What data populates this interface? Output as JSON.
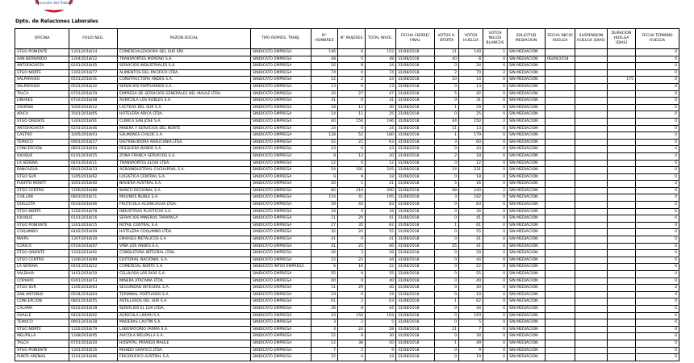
{
  "header": {
    "logo_text": "Dirección del Trabajo",
    "department": "Dpto. de Relaciones Laborales"
  },
  "table": {
    "columns": [
      "OFICINA",
      "FOLIO NEG.",
      "RAZON SOCIAL",
      "TIPO REPRES. TRABJ.",
      "N° HOMBRES",
      "N° MUJERES",
      "TOTAL INVOL.",
      "FECHA CIERRE/ FINAL",
      "VOTOS U. OFERTA",
      "VOTOS HUELGA",
      "VOTOS NULOS BLANCOS",
      "SOLICITUD MEDIACION",
      "FECHA INICIO HUELGA",
      "SUSPENSION HUELGA (DIAS)",
      "DURACION HUELGA (DIAS)",
      "FECHA TERMINO HUELGA"
    ],
    "rows": [
      [
        "STGO PONIENTE",
        "1301/2018/14",
        "COMERCIALIZADORA DEL SUR SPA",
        "SINDICATO EMPRESA",
        146,
        6,
        152,
        "31/08/2018",
        11,
        140,
        1,
        "SIN MEDIACION",
        null,
        null,
        null,
        0
      ],
      [
        "SAN BERNARDO",
        "1304/2018/22",
        "TRANSPORTES MORENO S.A.",
        "SINDICATO EMPRESA",
        48,
        0,
        48,
        "31/08/2018",
        40,
        8,
        0,
        "SIN MEDIACION",
        "06/09/2018",
        null,
        null,
        0
      ],
      [
        "ANTOFAGASTA",
        "0201/2018/45",
        "SERVICIOS INDUSTRIALES S.A.",
        "SINDICATO EMPRESA",
        16,
        8,
        24,
        "31/08/2018",
        0,
        24,
        0,
        "SIN MEDIACION",
        null,
        null,
        null,
        0
      ],
      [
        "STGO NORTE",
        "1302/2018/77",
        "ALIMENTOS DEL PACIFICO LTDA.",
        "SINDICATO EMPRESA",
        74,
        0,
        74,
        "31/08/2018",
        2,
        70,
        2,
        "SIN MEDIACION",
        null,
        null,
        null,
        0
      ],
      [
        "VALPARAISO",
        "0501/2018/31",
        "CONSTRUCTORA ANDES S.A.",
        "SINDICATO EMPRESA",
        22,
        2,
        24,
        "31/08/2018",
        10,
        14,
        0,
        "SIN MEDIACION",
        null,
        null,
        175,
        0
      ],
      [
        "VALPARAISO",
        "0501/2018/32",
        "SERVICIOS PORTUARIOS S.A.",
        "SINDICATO EMPRESA",
        13,
        0,
        13,
        "31/08/2018",
        0,
        13,
        0,
        "SIN MEDIACION",
        null,
        null,
        null,
        0
      ],
      [
        "TALCA",
        "0701/2018/19",
        "EMPRESA DE SERVICIOS GENERALES DEL MAULE LTDA.",
        "SINDICATO EMPRESA",
        20,
        27,
        47,
        "31/08/2018",
        5,
        42,
        0,
        "SIN MEDIACION",
        null,
        null,
        null,
        0
      ],
      [
        "LINARES",
        "0702/2018/08",
        "AGRICOLA LOS ROBLES S.A.",
        "SINDICATO EMPRESA",
        31,
        0,
        31,
        "31/08/2018",
        0,
        31,
        0,
        "SIN MEDIACION",
        null,
        null,
        null,
        0
      ],
      [
        "OSORNO",
        "1002/2018/12",
        "LACTEOS DEL SUR S.A.",
        "SINDICATO EMPRESA",
        18,
        12,
        30,
        "31/08/2018",
        1,
        29,
        0,
        "SIN MEDIACION",
        null,
        null,
        null,
        0
      ],
      [
        "ARICA",
        "1501/2018/05",
        "HOTELERA ARICA LTDA.",
        "SINDICATO EMPRESA",
        14,
        11,
        25,
        "31/08/2018",
        0,
        25,
        0,
        "SIN MEDIACION",
        null,
        null,
        null,
        0
      ],
      [
        "STGO ORIENTE",
        "1303/2018/91",
        "CLINICA SAN JOSE S.A.",
        "SINDICATO EMPRESA",
        40,
        156,
        196,
        "31/08/2018",
        44,
        150,
        2,
        "SIN MEDIACION",
        null,
        null,
        null,
        0
      ],
      [
        "ANTOFAGASTA",
        "0201/2018/46",
        "MINERA Y SERVICIOS DEL NORTE",
        "SINDICATO EMPRESA",
        24,
        0,
        24,
        "31/08/2018",
        11,
        13,
        0,
        "SIN MEDIACION",
        null,
        null,
        null,
        0
      ],
      [
        "CASTRO",
        "1005/2018/03",
        "SALMONES CHILOE S.A.",
        "SINDICATO EMPRESA",
        128,
        52,
        180,
        "31/08/2018",
        1,
        179,
        0,
        "SIN MEDIACION",
        null,
        null,
        null,
        0
      ],
      [
        "TEMUCO",
        "0901/2018/27",
        "DISTRIBUIDORA ARAUCANIA LTDA.",
        "SINDICATO EMPRESA",
        42,
        21,
        63,
        "31/08/2018",
        3,
        60,
        0,
        "SIN MEDIACION",
        null,
        null,
        null,
        0
      ],
      [
        "CONCEPCION",
        "0801/2018/54",
        "PESQUERA BIOBIO S.A.",
        "SINDICATO EMPRESA",
        43,
        0,
        43,
        "31/08/2018",
        0,
        43,
        0,
        "SIN MEDIACION",
        null,
        null,
        null,
        0
      ],
      [
        "IQUIQUE",
        "0101/2018/15",
        "ZONA FRANCA SERVICIOS S.A.",
        "SINDICATO EMPRESA",
        8,
        12,
        20,
        "31/08/2018",
        2,
        18,
        0,
        "SIN MEDIACION",
        null,
        null,
        null,
        0
      ],
      [
        "LA SERENA",
        "0401/2018/21",
        "TRANSPORTES ELQUI LTDA.",
        "SINDICATO EMPRESA",
        12,
        0,
        12,
        "31/08/2018",
        0,
        12,
        0,
        "SIN MEDIACION",
        null,
        null,
        null,
        0
      ],
      [
        "RANCAGUA",
        "0601/2018/33",
        "AGROINDUSTRIAL CACHAPOAL S.A.",
        "SINDICATO EMPRESA",
        54,
        191,
        245,
        "31/08/2018",
        14,
        231,
        0,
        "SIN MEDIACION",
        null,
        null,
        null,
        0
      ],
      [
        "STGO SUR",
        "1305/2018/62",
        "LOGISTICA CENTRAL S.A.",
        "SINDICATO EMPRESA",
        9,
        9,
        18,
        "31/08/2018",
        0,
        18,
        0,
        "SIN MEDIACION",
        null,
        null,
        null,
        0
      ],
      [
        "PUERTO MONTT",
        "1001/2018/40",
        "NAVIERA AUSTRAL S.A.",
        "SINDICATO EMPRESA",
        20,
        1,
        21,
        "31/08/2018",
        5,
        16,
        0,
        "SIN MEDIACION",
        null,
        null,
        null,
        0
      ],
      [
        "STGO CENTRO",
        "1306/2018/88",
        "BANCO REGIONAL S.A.",
        "SINDICATO EMPRESA",
        80,
        210,
        290,
        "31/08/2018",
        48,
        240,
        2,
        "SIN MEDIACION",
        null,
        null,
        null,
        0
      ],
      [
        "CHILLAN",
        "0803/2018/11",
        "MOLINOS ÑUBLE S.A.",
        "SINDICATO EMPRESA",
        154,
        41,
        195,
        "31/08/2018",
        3,
        192,
        0,
        "SIN MEDIACION",
        null,
        null,
        null,
        0
      ],
      [
        "QUILLOTA",
        "0503/2018/06",
        "FRUTICOLA ACONCAGUA LTDA.",
        "SINDICATO EMPRESA",
        39,
        44,
        83,
        "31/08/2018",
        0,
        83,
        0,
        "SIN MEDIACION",
        null,
        null,
        null,
        0
      ],
      [
        "STGO NORTE",
        "1302/2018/78",
        "INDUSTRIAS PLASTICAS S.A.",
        "SINDICATO EMPRESA",
        34,
        0,
        34,
        "31/08/2018",
        0,
        34,
        0,
        "SIN MEDIACION",
        null,
        null,
        null,
        0
      ],
      [
        "IQUIQUE",
        "0101/2018/16",
        "SERVICIOS MINEROS TARAPACA",
        "SINDICATO EMPRESA",
        21,
        20,
        41,
        "31/08/2018",
        0,
        41,
        0,
        "SIN MEDIACION",
        null,
        null,
        null,
        0
      ],
      [
        "STGO PONIENTE",
        "1301/2018/15",
        "RETAIL CENTRAL S.A.",
        "SINDICATO EMPRESA",
        27,
        35,
        62,
        "31/08/2018",
        1,
        61,
        0,
        "SIN MEDIACION",
        null,
        null,
        null,
        0
      ],
      [
        "COQUIMBO",
        "0402/2018/09",
        "HOTELERA COQUIMBO LTDA.",
        "SINDICATO EMPRESA",
        35,
        20,
        55,
        "31/08/2018",
        0,
        55,
        0,
        "SIN MEDIACION",
        null,
        null,
        null,
        0
      ],
      [
        "MAIPU",
        "1307/2018/20",
        "ENVASES METALICOS S.A.",
        "SINDICATO EMPRESA",
        41,
        0,
        41,
        "31/08/2018",
        0,
        41,
        0,
        "SIN MEDIACION",
        null,
        null,
        null,
        0
      ],
      [
        "CURICO",
        "0703/2018/07",
        "VIÑA LOS ANDES S.A.",
        "SINDICATO EMPRESA",
        41,
        25,
        66,
        "31/08/2018",
        25,
        41,
        0,
        "SIN MEDIACION",
        null,
        null,
        null,
        0
      ],
      [
        "STGO ORIENTE",
        "1303/2018/92",
        "CONSULTORA INTEGRAL LTDA.",
        "SINDICATO EMPRESA",
        26,
        3,
        29,
        "31/08/2018",
        0,
        29,
        0,
        "SIN MEDIACION",
        null,
        null,
        null,
        0
      ],
      [
        "STGO CENTRO",
        "1306/2018/89",
        "EDITORIAL NACIONAL S.A.",
        "SINDICATO EMPRESA",
        22,
        22,
        44,
        "31/08/2018",
        0,
        44,
        0,
        "SIN MEDIACION",
        null,
        null,
        null,
        0
      ],
      [
        "LA SERENA",
        "0401/2018/22",
        "COMERCIAL NORTE S.A.",
        "SINDICATO INTER EMPRESA",
        6,
        16,
        22,
        "31/08/2018",
        0,
        22,
        0,
        "SIN MEDIACION",
        null,
        null,
        null,
        0
      ],
      [
        "VALDIVIA",
        "1401/2018/10",
        "CELULOSA LOS RIOS S.A.",
        "SINDICATO EMPRESA",
        55,
        0,
        55,
        "31/08/2018",
        0,
        55,
        0,
        "SIN MEDIACION",
        null,
        null,
        null,
        0
      ],
      [
        "COPIAPO",
        "0301/2018/13",
        "MINERA ATACAMA LTDA.",
        "SINDICATO EMPRESA",
        40,
        0,
        40,
        "31/08/2018",
        0,
        40,
        0,
        "SIN MEDIACION",
        null,
        null,
        null,
        0
      ],
      [
        "STGO SUR",
        "1305/2018/63",
        "SEGURIDAD INTEGRAL S.A.",
        "SINDICATO EMPRESA",
        11,
        29,
        40,
        "31/08/2018",
        0,
        40,
        0,
        "SIN MEDIACION",
        null,
        null,
        null,
        0
      ],
      [
        "SAN ANTONIO",
        "0504/2018/04",
        "TERMINAL PORTUARIO S.A.",
        "SINDICATO EMPRESA",
        19,
        0,
        19,
        "31/08/2018",
        0,
        19,
        0,
        "SIN MEDIACION",
        null,
        null,
        null,
        0
      ],
      [
        "CONCEPCION",
        "0801/2018/55",
        "ASTILLEROS DEL SUR S.A.",
        "SINDICATO EMPRESA",
        61,
        2,
        63,
        "31/08/2018",
        1,
        62,
        0,
        "SIN MEDIACION",
        null,
        null,
        null,
        0
      ],
      [
        "CALAMA",
        "0202/2018/18",
        "SERVICIOS EL LOA LTDA.",
        "SINDICATO EMPRESA",
        36,
        8,
        44,
        "31/08/2018",
        0,
        44,
        0,
        "SIN MEDIACION",
        null,
        null,
        null,
        0
      ],
      [
        "OVALLE",
        "0403/2018/02",
        "AGRICOLA LIMARI S.A.",
        "SINDICATO EMPRESA",
        43,
        150,
        193,
        "31/08/2018",
        0,
        193,
        0,
        "SIN MEDIACION",
        null,
        null,
        null,
        0
      ],
      [
        "TEMUCO",
        "0901/2018/28",
        "MADERAS CAUTIN S.A.",
        "SINDICATO EMPRESA",
        3,
        2,
        5,
        "31/08/2018",
        0,
        5,
        0,
        "SIN MEDIACION",
        null,
        null,
        null,
        0
      ],
      [
        "STGO NORTE",
        "1302/2018/79",
        "LABORATORIO FARMA S.A.",
        "SINDICATO EMPRESA",
        4,
        24,
        28,
        "31/08/2018",
        21,
        7,
        0,
        "SIN MEDIACION",
        null,
        null,
        null,
        0
      ],
      [
        "MELIPILLA",
        "1308/2018/05",
        "AVICOLA MELIPILLA S.A.",
        "SINDICATO EMPRESA",
        22,
        8,
        30,
        "31/08/2018",
        0,
        30,
        0,
        "SIN MEDIACION",
        null,
        null,
        null,
        0
      ],
      [
        "TALCA",
        "0701/2018/20",
        "HOSPITAL PRIVADO MAULE",
        "SINDICATO EMPRESA",
        12,
        38,
        50,
        "31/08/2018",
        1,
        49,
        0,
        "SIN MEDIACION",
        null,
        null,
        null,
        0
      ],
      [
        "STGO PONIENTE",
        "1301/2018/16",
        "MUNDO GRAFICO LTDA.",
        "SINDICATO EMPRESA",
        7,
        2,
        9,
        "31/08/2018",
        0,
        9,
        0,
        "SIN MEDIACION",
        null,
        null,
        null,
        0
      ],
      [
        "PUNTA ARENAS",
        "1201/2018/06",
        "FRIGORIFICO AUSTRAL S.A.",
        "SINDICATO EMPRESA",
        15,
        4,
        19,
        "31/08/2018",
        0,
        19,
        0,
        "SIN MEDIACION",
        null,
        null,
        null,
        0
      ]
    ]
  }
}
